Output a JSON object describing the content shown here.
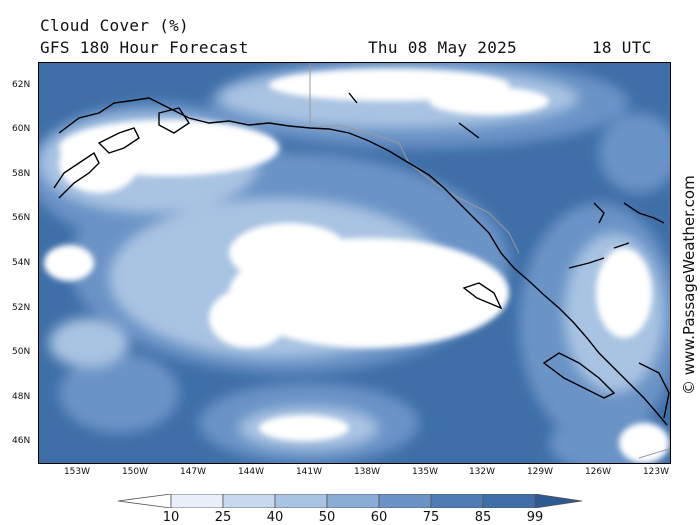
{
  "header": {
    "title": "Cloud Cover (%)",
    "subtitle": "GFS 180 Hour Forecast",
    "date": "Thu 08 May 2025",
    "time": "18 UTC"
  },
  "map": {
    "region": "Gulf of Alaska / British Columbia",
    "lat_labels": [
      "62N",
      "60N",
      "58N",
      "56N",
      "54N",
      "52N",
      "50N",
      "48N",
      "46N"
    ],
    "lon_labels": [
      "153W",
      "150W",
      "147W",
      "144W",
      "141W",
      "138W",
      "135W",
      "132W",
      "129W",
      "126W",
      "123W"
    ],
    "colors": {
      "ocean_cloud_low": "#3f6fa8",
      "cloud_mid": "#6b93c6",
      "cloud_high": "#a9c3e2",
      "cloud_full": "#ffffff",
      "coastline": "#000000",
      "border": "#aaaaaa"
    }
  },
  "legend": {
    "levels": [
      "10",
      "25",
      "40",
      "50",
      "60",
      "75",
      "85",
      "99"
    ],
    "colors": [
      "#ffffff",
      "#e8eff8",
      "#c9d9ed",
      "#a9c3e2",
      "#8aadd6",
      "#6b93c6",
      "#4e7cb5",
      "#3f6fa8",
      "#2e5a92"
    ]
  },
  "watermark": "© www.PassageWeather.com"
}
